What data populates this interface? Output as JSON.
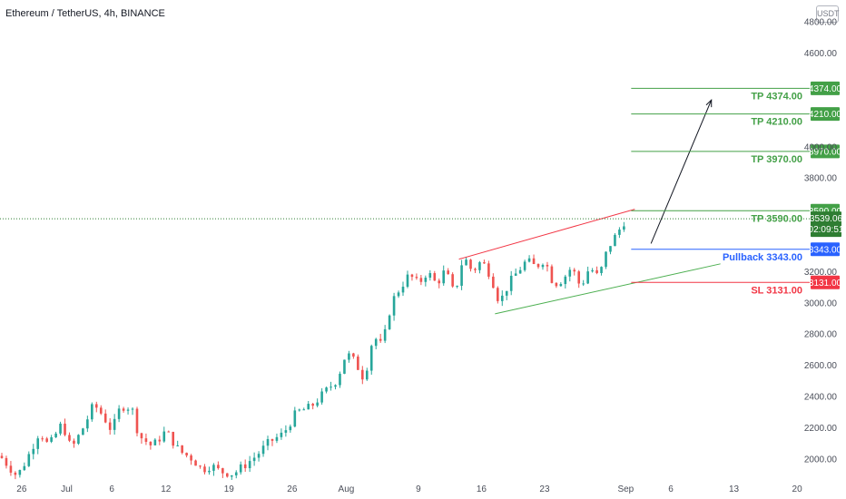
{
  "header": {
    "title": "Ethereum / TetherUS, 4h, BINANCE",
    "currency_badge": "USDT"
  },
  "colors": {
    "up": "#26a69a",
    "down": "#ef5350",
    "tp": "#43a047",
    "pullback": "#2962ff",
    "sl": "#f23645",
    "current": "#2e7d32",
    "arrow": "#131722"
  },
  "chart_data": {
    "type": "candlestick",
    "symbol": "Ethereum / TetherUS",
    "interval": "4h",
    "exchange": "BINANCE",
    "ylim": [
      1860,
      4940
    ],
    "y_ticks": [
      {
        "value": 2000,
        "label": "2000.00"
      },
      {
        "value": 2200,
        "label": "2200.00"
      },
      {
        "value": 2400,
        "label": "2400.00"
      },
      {
        "value": 2600,
        "label": "2600.00"
      },
      {
        "value": 2800,
        "label": "2800.00"
      },
      {
        "value": 3000,
        "label": "3000.00"
      },
      {
        "value": 3200,
        "label": "3200.00"
      },
      {
        "value": 3800,
        "label": "3800.00"
      },
      {
        "value": 4000,
        "label": "4000.00"
      },
      {
        "value": 4600,
        "label": "4600.00"
      },
      {
        "value": 4800,
        "label": "4800.00"
      }
    ],
    "x_ticks": [
      {
        "day": -5,
        "label": "26"
      },
      {
        "day": 0,
        "label": "Jul"
      },
      {
        "day": 5,
        "label": "6"
      },
      {
        "day": 11,
        "label": "12"
      },
      {
        "day": 18,
        "label": "19"
      },
      {
        "day": 25,
        "label": "26"
      },
      {
        "day": 31,
        "label": "Aug"
      },
      {
        "day": 39,
        "label": "9"
      },
      {
        "day": 46,
        "label": "16"
      },
      {
        "day": 53,
        "label": "23"
      },
      {
        "day": 62,
        "label": "Sep"
      },
      {
        "day": 67,
        "label": "6"
      },
      {
        "day": 74,
        "label": "13"
      },
      {
        "day": 81,
        "label": "20"
      }
    ],
    "x_range_days": [
      -7.4,
      82.4
    ],
    "candle_anchors": [
      {
        "day": -7.4,
        "price": 2020
      },
      {
        "day": -5.5,
        "price": 1890
      },
      {
        "day": -4.5,
        "price": 1990
      },
      {
        "day": -3,
        "price": 2180
      },
      {
        "day": -2,
        "price": 2080
      },
      {
        "day": -0.5,
        "price": 2230
      },
      {
        "day": 0.5,
        "price": 2060
      },
      {
        "day": 2,
        "price": 2220
      },
      {
        "day": 3,
        "price": 2350
      },
      {
        "day": 4,
        "price": 2280
      },
      {
        "day": 5,
        "price": 2180
      },
      {
        "day": 6,
        "price": 2340
      },
      {
        "day": 7.2,
        "price": 2330
      },
      {
        "day": 8,
        "price": 2150
      },
      {
        "day": 9.5,
        "price": 2080
      },
      {
        "day": 11,
        "price": 2180
      },
      {
        "day": 12.5,
        "price": 2050
      },
      {
        "day": 14,
        "price": 2000
      },
      {
        "day": 15,
        "price": 1930
      },
      {
        "day": 16,
        "price": 1960
      },
      {
        "day": 17,
        "price": 1920
      },
      {
        "day": 18.5,
        "price": 1905
      },
      {
        "day": 19.5,
        "price": 1950
      },
      {
        "day": 21,
        "price": 2020
      },
      {
        "day": 22.5,
        "price": 2110
      },
      {
        "day": 24,
        "price": 2160
      },
      {
        "day": 25.5,
        "price": 2300
      },
      {
        "day": 27,
        "price": 2330
      },
      {
        "day": 28.5,
        "price": 2420
      },
      {
        "day": 30,
        "price": 2510
      },
      {
        "day": 31,
        "price": 2680
      },
      {
        "day": 32,
        "price": 2620
      },
      {
        "day": 33,
        "price": 2510
      },
      {
        "day": 34,
        "price": 2790
      },
      {
        "day": 35,
        "price": 2720
      },
      {
        "day": 36,
        "price": 3000
      },
      {
        "day": 37,
        "price": 3100
      },
      {
        "day": 38,
        "price": 3180
      },
      {
        "day": 39,
        "price": 3120
      },
      {
        "day": 40,
        "price": 3200
      },
      {
        "day": 41,
        "price": 3120
      },
      {
        "day": 42,
        "price": 3210
      },
      {
        "day": 43,
        "price": 3050
      },
      {
        "day": 44,
        "price": 3300
      },
      {
        "day": 45,
        "price": 3200
      },
      {
        "day": 46,
        "price": 3270
      },
      {
        "day": 47,
        "price": 3180
      },
      {
        "day": 48,
        "price": 3000
      },
      {
        "day": 49,
        "price": 3120
      },
      {
        "day": 50,
        "price": 3200
      },
      {
        "day": 51,
        "price": 3270
      },
      {
        "day": 52,
        "price": 3230
      },
      {
        "day": 53,
        "price": 3280
      },
      {
        "day": 54,
        "price": 3120
      },
      {
        "day": 55,
        "price": 3150
      },
      {
        "day": 56,
        "price": 3230
      },
      {
        "day": 57,
        "price": 3100
      },
      {
        "day": 58,
        "price": 3230
      },
      {
        "day": 59,
        "price": 3160
      },
      {
        "day": 60,
        "price": 3350
      },
      {
        "day": 61,
        "price": 3440
      },
      {
        "day": 62,
        "price": 3539
      }
    ],
    "annotations": {
      "upper_channel": [
        {
          "day": 43.5,
          "price": 3280
        },
        {
          "day": 63,
          "price": 3600
        }
      ],
      "lower_channel": [
        {
          "day": 47.5,
          "price": 2930
        },
        {
          "day": 72.5,
          "price": 3250
        }
      ],
      "arrow": [
        {
          "day": 64.8,
          "price": 3380
        },
        {
          "day": 71.5,
          "price": 4300
        }
      ],
      "current_price_line": 3539
    },
    "levels": [
      {
        "id": "tp4",
        "price": 4374,
        "label": "TP 4374.00",
        "badge": "4374.00",
        "kind": "tp",
        "start_day": 62.6
      },
      {
        "id": "tp3",
        "price": 4210,
        "label": "TP 4210.00",
        "badge": "4210.00",
        "kind": "tp",
        "start_day": 62.6
      },
      {
        "id": "tp2",
        "price": 3970,
        "label": "TP 3970.00",
        "badge": "3970.00",
        "kind": "tp",
        "start_day": 62.6
      },
      {
        "id": "tp1",
        "price": 3590,
        "label": "TP 3590.00",
        "badge": "3590.00",
        "kind": "tp",
        "start_day": 62.6
      },
      {
        "id": "pullback",
        "price": 3343,
        "label": "Pullback 3343.00",
        "badge": "3343.00",
        "kind": "pullback",
        "start_day": 62.6
      },
      {
        "id": "sl",
        "price": 3131,
        "label": "SL 3131.00",
        "badge": "3131.00",
        "kind": "sl",
        "start_day": 62.6
      }
    ],
    "current_price": {
      "price": "3539.06",
      "countdown": "02:09:51"
    }
  }
}
